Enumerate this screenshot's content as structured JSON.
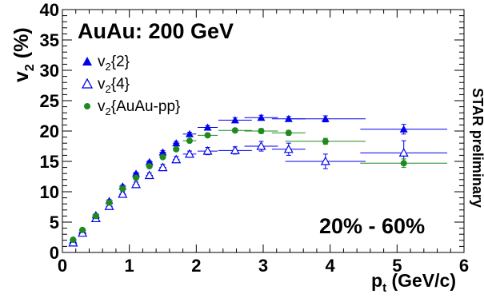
{
  "chart_data": {
    "type": "scatter",
    "title": "",
    "xlim": [
      0,
      6
    ],
    "ylim": [
      0,
      40
    ],
    "x_ticks": [
      "0",
      "1",
      "2",
      "3",
      "4",
      "5",
      "6"
    ],
    "y_ticks": [
      "0",
      "5",
      "10",
      "15",
      "20",
      "25",
      "30",
      "35",
      "40"
    ],
    "xlabel": {
      "main": "p",
      "sub": "t",
      "rest": " (GeV/c)"
    },
    "ylabel": {
      "main": "v",
      "sub": "2",
      "rest": " (%)"
    },
    "annotations": {
      "system": "AuAu: 200 GeV",
      "centrality": "20% - 60%",
      "preliminary": "STAR preliminary"
    },
    "grid": false,
    "legend_position": "top-left",
    "series": [
      {
        "label_main": "v",
        "label_sub": "2",
        "label_rest": "{2}",
        "marker": "filled-triangle",
        "color": "#0000ee",
        "points": [
          {
            "x": 0.16,
            "y": 2.0,
            "xerr": 0.05,
            "yerr": 0.2
          },
          {
            "x": 0.3,
            "y": 3.6,
            "xerr": 0.05,
            "yerr": 0.2
          },
          {
            "x": 0.5,
            "y": 6.2,
            "xerr": 0.05,
            "yerr": 0.2
          },
          {
            "x": 0.7,
            "y": 8.5,
            "xerr": 0.05,
            "yerr": 0.2
          },
          {
            "x": 0.9,
            "y": 10.9,
            "xerr": 0.05,
            "yerr": 0.2
          },
          {
            "x": 1.1,
            "y": 13.0,
            "xerr": 0.05,
            "yerr": 0.2
          },
          {
            "x": 1.3,
            "y": 14.9,
            "xerr": 0.05,
            "yerr": 0.2
          },
          {
            "x": 1.5,
            "y": 16.5,
            "xerr": 0.05,
            "yerr": 0.3
          },
          {
            "x": 1.7,
            "y": 18.0,
            "xerr": 0.05,
            "yerr": 0.3
          },
          {
            "x": 1.9,
            "y": 19.5,
            "xerr": 0.1,
            "yerr": 0.3
          },
          {
            "x": 2.17,
            "y": 20.6,
            "xerr": 0.15,
            "yerr": 0.3
          },
          {
            "x": 2.58,
            "y": 21.8,
            "xerr": 0.25,
            "yerr": 0.4
          },
          {
            "x": 2.97,
            "y": 22.2,
            "xerr": 0.25,
            "yerr": 0.4
          },
          {
            "x": 3.38,
            "y": 22.0,
            "xerr": 0.25,
            "yerr": 0.4
          },
          {
            "x": 3.93,
            "y": 22.0,
            "xerr": 0.6,
            "yerr": 0.5
          },
          {
            "x": 5.1,
            "y": 20.3,
            "xerr": 0.65,
            "yerr": 0.8
          }
        ]
      },
      {
        "label_main": "v",
        "label_sub": "2",
        "label_rest": "{4}",
        "marker": "open-triangle",
        "color": "#0000ee",
        "points": [
          {
            "x": 0.16,
            "y": 1.6,
            "xerr": 0.05,
            "yerr": 0.3
          },
          {
            "x": 0.3,
            "y": 3.2,
            "xerr": 0.05,
            "yerr": 0.3
          },
          {
            "x": 0.5,
            "y": 5.6,
            "xerr": 0.05,
            "yerr": 0.3
          },
          {
            "x": 0.7,
            "y": 7.6,
            "xerr": 0.05,
            "yerr": 0.4
          },
          {
            "x": 0.9,
            "y": 9.6,
            "xerr": 0.05,
            "yerr": 0.4
          },
          {
            "x": 1.1,
            "y": 11.2,
            "xerr": 0.05,
            "yerr": 0.4
          },
          {
            "x": 1.3,
            "y": 12.7,
            "xerr": 0.05,
            "yerr": 0.4
          },
          {
            "x": 1.5,
            "y": 14.0,
            "xerr": 0.05,
            "yerr": 0.5
          },
          {
            "x": 1.7,
            "y": 15.3,
            "xerr": 0.05,
            "yerr": 0.5
          },
          {
            "x": 1.9,
            "y": 16.2,
            "xerr": 0.1,
            "yerr": 0.5
          },
          {
            "x": 2.17,
            "y": 16.7,
            "xerr": 0.15,
            "yerr": 0.6
          },
          {
            "x": 2.58,
            "y": 16.8,
            "xerr": 0.25,
            "yerr": 0.6
          },
          {
            "x": 2.97,
            "y": 17.5,
            "xerr": 0.25,
            "yerr": 0.8
          },
          {
            "x": 3.38,
            "y": 17.0,
            "xerr": 0.25,
            "yerr": 1.0
          },
          {
            "x": 3.93,
            "y": 15.0,
            "xerr": 0.6,
            "yerr": 1.2
          },
          {
            "x": 5.1,
            "y": 16.4,
            "xerr": 0.65,
            "yerr": 2.0
          }
        ]
      },
      {
        "label_main": "v",
        "label_sub": "2",
        "label_rest": "{AuAu-pp}",
        "marker": "filled-circle",
        "color": "#1f8a1f",
        "points": [
          {
            "x": 0.16,
            "y": 2.1,
            "xerr": 0.05,
            "yerr": 0.2
          },
          {
            "x": 0.3,
            "y": 3.7,
            "xerr": 0.05,
            "yerr": 0.2
          },
          {
            "x": 0.5,
            "y": 6.0,
            "xerr": 0.05,
            "yerr": 0.2
          },
          {
            "x": 0.7,
            "y": 8.2,
            "xerr": 0.05,
            "yerr": 0.2
          },
          {
            "x": 0.9,
            "y": 10.5,
            "xerr": 0.05,
            "yerr": 0.2
          },
          {
            "x": 1.1,
            "y": 12.3,
            "xerr": 0.05,
            "yerr": 0.2
          },
          {
            "x": 1.3,
            "y": 14.2,
            "xerr": 0.05,
            "yerr": 0.2
          },
          {
            "x": 1.5,
            "y": 15.7,
            "xerr": 0.05,
            "yerr": 0.3
          },
          {
            "x": 1.7,
            "y": 17.0,
            "xerr": 0.05,
            "yerr": 0.3
          },
          {
            "x": 1.9,
            "y": 18.4,
            "xerr": 0.1,
            "yerr": 0.3
          },
          {
            "x": 2.17,
            "y": 19.3,
            "xerr": 0.15,
            "yerr": 0.3
          },
          {
            "x": 2.58,
            "y": 20.1,
            "xerr": 0.25,
            "yerr": 0.3
          },
          {
            "x": 2.97,
            "y": 20.0,
            "xerr": 0.25,
            "yerr": 0.4
          },
          {
            "x": 3.38,
            "y": 19.7,
            "xerr": 0.25,
            "yerr": 0.4
          },
          {
            "x": 3.93,
            "y": 18.3,
            "xerr": 0.6,
            "yerr": 0.5
          },
          {
            "x": 5.1,
            "y": 14.7,
            "xerr": 0.65,
            "yerr": 0.7
          }
        ]
      }
    ]
  }
}
